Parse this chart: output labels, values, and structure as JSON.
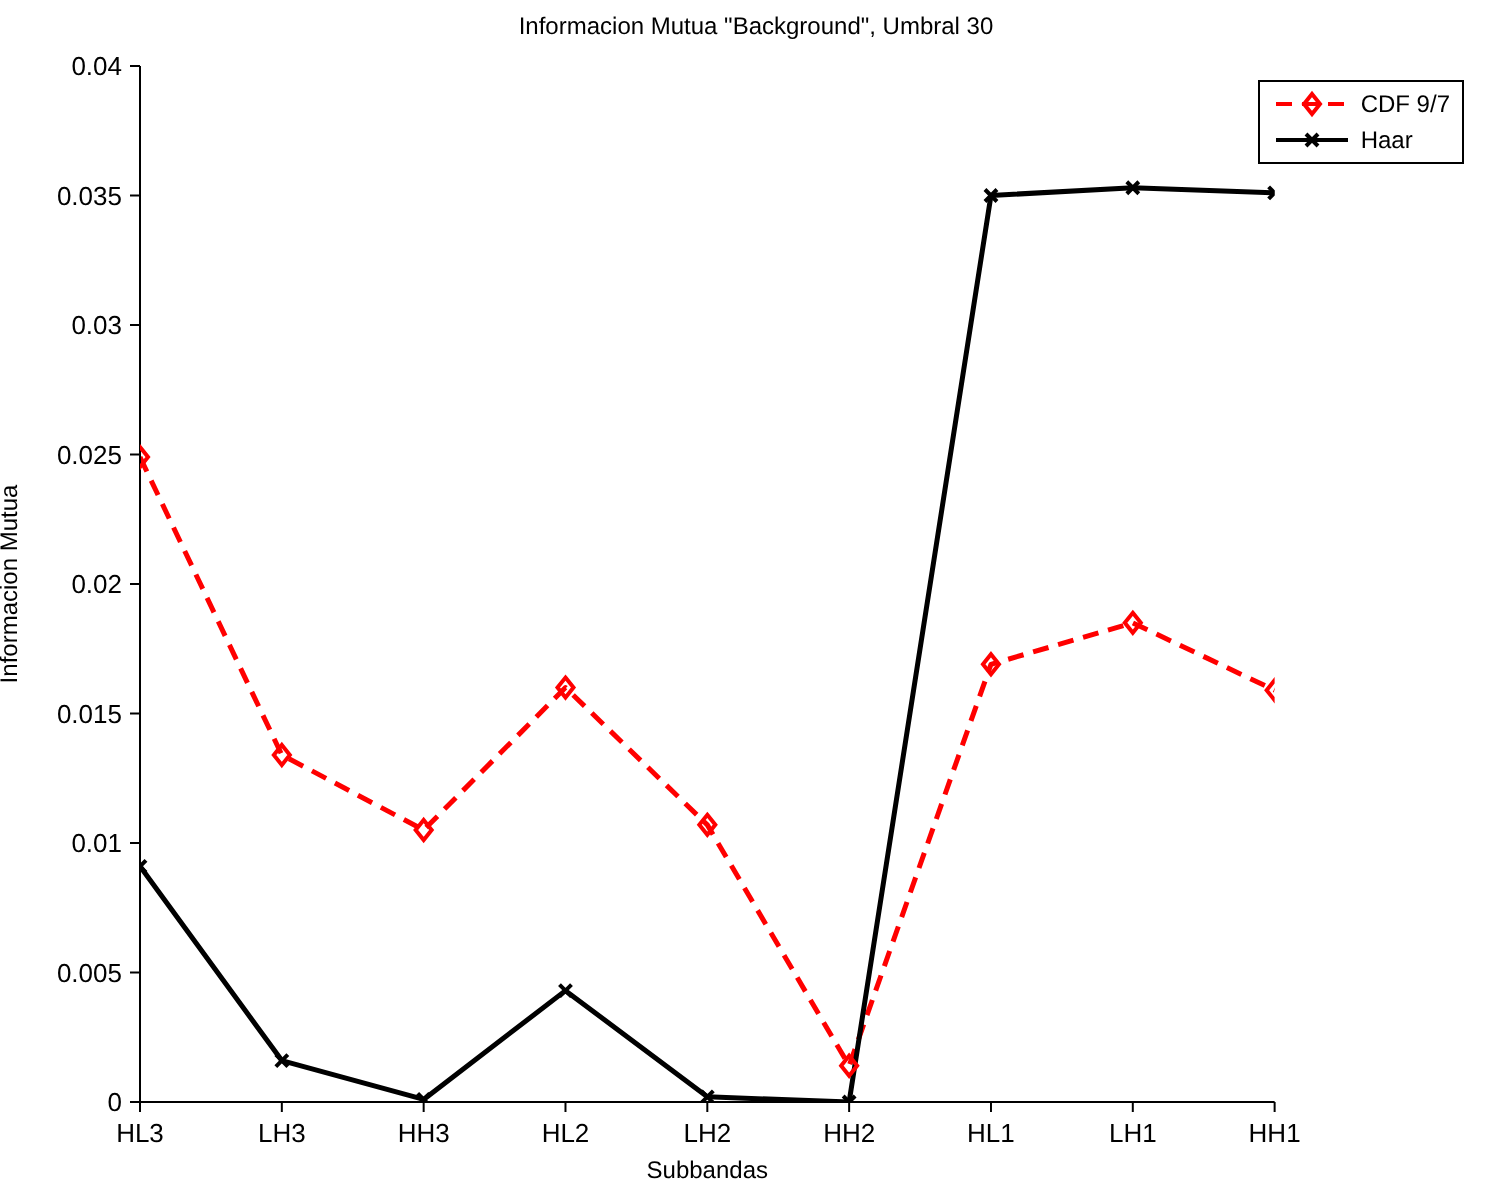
{
  "chart_data": {
    "type": "line",
    "title": "Informacion Mutua \"Background\", Umbral 30",
    "xlabel": "Subbandas",
    "ylabel": "Informacion Mutua",
    "categories": [
      "HL3",
      "LH3",
      "HH3",
      "HL2",
      "LH2",
      "HH2",
      "HL1",
      "LH1",
      "HH1"
    ],
    "series": [
      {
        "name": "CDF 9/7",
        "color": "#ff0000",
        "marker": "diamond",
        "line_style": "dashed",
        "values": [
          0.0249,
          0.0134,
          0.0105,
          0.016,
          0.0107,
          0.0014,
          0.0169,
          0.0185,
          0.0159
        ]
      },
      {
        "name": "Haar",
        "color": "#000000",
        "marker": "cross",
        "line_style": "solid",
        "values": [
          0.0091,
          0.0016,
          0.0001,
          0.0043,
          0.0002,
          0,
          0.035,
          0.0353,
          0.0351
        ]
      }
    ],
    "ylim": [
      0,
      0.04
    ],
    "yticks": [
      0,
      0.005,
      0.01,
      0.015,
      0.02,
      0.025,
      0.03,
      0.035,
      0.04
    ],
    "grid": false,
    "legend": "top right"
  }
}
